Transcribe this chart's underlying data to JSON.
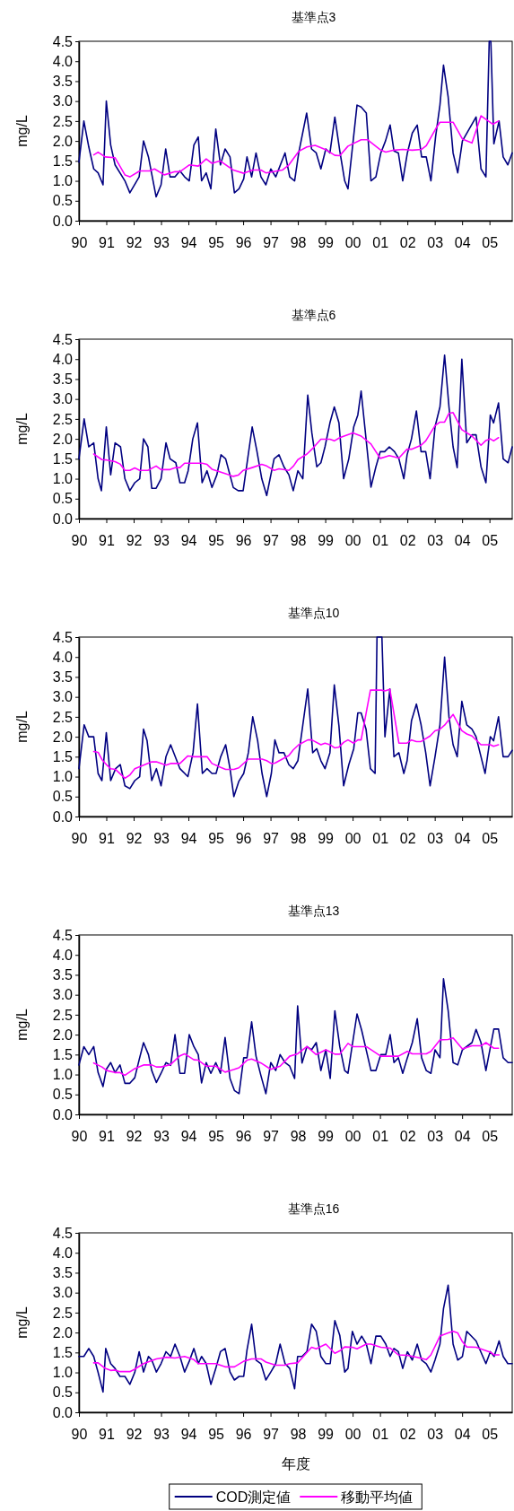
{
  "chart_data": [
    {
      "type": "line",
      "title": "基準点3",
      "ylabel": "mg/L",
      "xlim": [
        1990,
        2005.83
      ],
      "ylim": [
        0,
        4.5
      ],
      "xticks": [
        {
          "value": 1990,
          "label": "90"
        },
        {
          "value": 1991,
          "label": "91"
        },
        {
          "value": 1992,
          "label": "92"
        },
        {
          "value": 1993,
          "label": "93"
        },
        {
          "value": 1994,
          "label": "94"
        },
        {
          "value": 1995,
          "label": "95"
        },
        {
          "value": 1996,
          "label": "96"
        },
        {
          "value": 1997,
          "label": "97"
        },
        {
          "value": 1998,
          "label": "98"
        },
        {
          "value": 1999,
          "label": "99"
        },
        {
          "value": 2000,
          "label": "00"
        },
        {
          "value": 2001,
          "label": "01"
        },
        {
          "value": 2002,
          "label": "02"
        },
        {
          "value": 2003,
          "label": "03"
        },
        {
          "value": 2004,
          "label": "04"
        },
        {
          "value": 2005,
          "label": "05"
        }
      ],
      "yticks": [
        {
          "value": 0,
          "label": "0.0"
        },
        0.5,
        {
          "value": 1,
          "label": "1.0"
        },
        1.5,
        {
          "value": 2,
          "label": "2.0"
        },
        2.5,
        {
          "value": 3,
          "label": "3.0"
        },
        3.5,
        {
          "value": 4,
          "label": "4.0"
        },
        4.5
      ],
      "series": [
        {
          "color": "#000080",
          "x": [
            1990,
            1990.18,
            1990.36,
            1990.54,
            1990.7,
            1990.88,
            1991,
            1991.16,
            1991.32,
            1991.68,
            1991.86,
            1992.2,
            1992.36,
            1992.54,
            1992.82,
            1993,
            1993.17,
            1993.33,
            1993.51,
            1993.69,
            1993.86,
            1994.03,
            1994.2,
            1994.36,
            1994.48,
            1994.65,
            1994.82,
            1995,
            1995.17,
            1995.34,
            1995.52,
            1995.68,
            1995.85,
            1996.02,
            1996.14,
            1996.31,
            1996.47,
            1996.65,
            1996.83,
            1997.01,
            1997.19,
            1997.53,
            1997.7,
            1997.88,
            1998.03,
            1998.32,
            1998.5,
            1998.67,
            1998.84,
            1999.02,
            1999.17,
            1999.35,
            1999.53,
            1999.71,
            1999.83,
            2000.16,
            2000.31,
            2000.5,
            2000.67,
            2000.85,
            2001.03,
            2001.2,
            2001.37,
            2001.51,
            2001.67,
            2001.83,
            2002,
            2002.18,
            2002.36,
            2002.52,
            2002.69,
            2002.86,
            2003.03,
            2003.19,
            2003.32,
            2003.49,
            2003.67,
            2003.84,
            2004.01,
            2004.51,
            2004.69,
            2004.87,
            2004.99,
            2005.05,
            2005.16,
            2005.35,
            2005.5,
            2005.67,
            2005.83
          ],
          "values": [
            1.47,
            2.5,
            1.85,
            1.3,
            1.2,
            0.9,
            3.0,
            1.9,
            1.4,
            1.0,
            0.7,
            1.1,
            2.0,
            1.6,
            0.6,
            0.9,
            1.8,
            1.1,
            1.1,
            1.25,
            1.1,
            1.0,
            1.9,
            2.1,
            1.0,
            1.2,
            0.8,
            2.3,
            1.4,
            1.8,
            1.6,
            0.7,
            0.8,
            1.05,
            1.6,
            1.1,
            1.7,
            1.1,
            0.9,
            1.3,
            1.1,
            1.7,
            1.1,
            1.0,
            1.7,
            2.7,
            1.8,
            1.7,
            1.3,
            1.8,
            1.7,
            2.6,
            1.75,
            1.0,
            0.8,
            2.9,
            2.85,
            2.7,
            1.0,
            1.1,
            1.7,
            2.0,
            2.4,
            1.75,
            1.7,
            1.0,
            1.7,
            2.2,
            2.4,
            1.6,
            1.6,
            1.0,
            2.1,
            2.9,
            3.9,
            3.1,
            1.7,
            1.2,
            2.0,
            2.6,
            1.3,
            1.1,
            4.5,
            4.5,
            1.93,
            2.5,
            1.6,
            1.4,
            1.7
          ]
        },
        {
          "color": "#ff00ff",
          "x": [
            1990.54,
            1990.7,
            1990.96,
            1991.32,
            1991.68,
            1991.86,
            1992.22,
            1992.58,
            1992.76,
            1993.12,
            1993.51,
            1993.69,
            1994.03,
            1994.36,
            1994.65,
            1994.86,
            1995.16,
            1995.64,
            1996.02,
            1996.35,
            1996.65,
            1996.83,
            1997.43,
            1997.67,
            1998.03,
            1998.33,
            1998.63,
            1999.05,
            1999.35,
            1999.53,
            1999.83,
            2000.31,
            2000.55,
            2001.03,
            2001.21,
            2001.51,
            2001.83,
            2002.18,
            2002.52,
            2002.69,
            2003.03,
            2003.19,
            2003.67,
            2004.01,
            2004.36,
            2004.69,
            2005.12,
            2005.33
          ],
          "values": [
            1.65,
            1.72,
            1.6,
            1.58,
            1.15,
            1.1,
            1.25,
            1.25,
            1.3,
            1.15,
            1.23,
            1.23,
            1.4,
            1.37,
            1.55,
            1.44,
            1.5,
            1.27,
            1.19,
            1.27,
            1.27,
            1.2,
            1.27,
            1.4,
            1.74,
            1.85,
            1.89,
            1.77,
            1.64,
            1.63,
            1.87,
            2.03,
            2.03,
            1.77,
            1.72,
            1.77,
            1.79,
            1.77,
            1.79,
            1.88,
            2.3,
            2.47,
            2.47,
            2.05,
            1.95,
            2.63,
            2.42,
            2.5
          ]
        }
      ]
    },
    {
      "type": "line",
      "title": "基準点6",
      "ylabel": "mg/L",
      "xlim": [
        1990,
        2005.83
      ],
      "ylim": [
        0,
        4.5
      ],
      "xticks": [
        {
          "value": 1990,
          "label": "90"
        },
        {
          "value": 1991,
          "label": "91"
        },
        {
          "value": 1992,
          "label": "92"
        },
        {
          "value": 1993,
          "label": "93"
        },
        {
          "value": 1994,
          "label": "94"
        },
        {
          "value": 1995,
          "label": "95"
        },
        {
          "value": 1996,
          "label": "96"
        },
        {
          "value": 1997,
          "label": "97"
        },
        {
          "value": 1998,
          "label": "98"
        },
        {
          "value": 1999,
          "label": "99"
        },
        {
          "value": 2000,
          "label": "00"
        },
        {
          "value": 2001,
          "label": "01"
        },
        {
          "value": 2002,
          "label": "02"
        },
        {
          "value": 2003,
          "label": "03"
        },
        {
          "value": 2004,
          "label": "04"
        },
        {
          "value": 2005,
          "label": "05"
        }
      ],
      "yticks": [
        {
          "value": 0,
          "label": "0.0"
        },
        0.5,
        {
          "value": 1,
          "label": "1.0"
        },
        1.5,
        {
          "value": 2,
          "label": "2.0"
        },
        2.5,
        {
          "value": 3,
          "label": "3.0"
        },
        3.5,
        {
          "value": 4,
          "label": "4.0"
        },
        4.5
      ],
      "series": [
        {
          "color": "#000080",
          "x": [
            1990,
            1990.19,
            1990.36,
            1990.54,
            1990.7,
            1990.82,
            1991,
            1991.16,
            1991.32,
            1991.52,
            1991.68,
            1991.86,
            1992.04,
            1992.22,
            1992.36,
            1992.52,
            1992.66,
            1992.82,
            1993,
            1993.18,
            1993.33,
            1993.54,
            1993.69,
            1993.86,
            1993.99,
            1994.16,
            1994.33,
            1994.5,
            1994.68,
            1994.86,
            1995.04,
            1995.19,
            1995.36,
            1995.64,
            1995.82,
            1996,
            1996.33,
            1996.5,
            1996.68,
            1996.86,
            1997.13,
            1997.31,
            1997.49,
            1997.67,
            1997.83,
            1998,
            1998.18,
            1998.36,
            1998.51,
            1998.69,
            1998.84,
            1998.99,
            1999.17,
            1999.33,
            1999.5,
            1999.67,
            1999.86,
            2000.04,
            2000.19,
            2000.31,
            2000.49,
            2000.67,
            2000.85,
            2001.01,
            2001.17,
            2001.34,
            2001.53,
            2001.69,
            2001.87,
            2001.99,
            2002.15,
            2002.33,
            2002.5,
            2002.67,
            2002.83,
            2003.01,
            2003.19,
            2003.36,
            2003.52,
            2003.67,
            2003.82,
            2003.99,
            2004.17,
            2004.36,
            2004.51,
            2004.69,
            2004.87,
            2005.03,
            2005.15,
            2005.33,
            2005.5,
            2005.68,
            2005.83
          ],
          "values": [
            1.5,
            2.5,
            1.8,
            1.9,
            1.0,
            0.7,
            2.3,
            1.1,
            1.9,
            1.8,
            1.0,
            0.7,
            0.9,
            1.0,
            2.0,
            1.8,
            0.76,
            0.76,
            1.0,
            1.9,
            1.5,
            1.4,
            0.9,
            0.9,
            1.2,
            2.0,
            2.4,
            0.9,
            1.2,
            0.78,
            1.1,
            1.6,
            1.5,
            0.78,
            0.7,
            0.7,
            2.3,
            1.7,
            1.0,
            0.58,
            1.5,
            1.6,
            1.3,
            1.1,
            0.7,
            1.2,
            1.0,
            3.1,
            2.15,
            1.3,
            1.4,
            1.8,
            2.4,
            2.8,
            2.4,
            1.0,
            1.5,
            2.3,
            2.6,
            3.2,
            2.0,
            0.79,
            1.3,
            1.68,
            1.68,
            1.8,
            1.68,
            1.5,
            1.0,
            1.6,
            2.0,
            2.7,
            1.68,
            1.68,
            1.0,
            2.3,
            2.8,
            4.1,
            2.8,
            1.8,
            1.28,
            4.0,
            1.9,
            2.1,
            2.1,
            1.3,
            0.9,
            2.6,
            2.4,
            2.9,
            1.5,
            1.4,
            1.8
          ]
        },
        {
          "color": "#ff00ff",
          "x": [
            1990.54,
            1990.84,
            1991.02,
            1991.32,
            1991.5,
            1991.68,
            1991.86,
            1992.04,
            1992.22,
            1992.52,
            1992.82,
            1993,
            1993.33,
            1993.54,
            1993.69,
            1993.86,
            1994.5,
            1994.68,
            1994.86,
            1995.34,
            1995.64,
            1995.82,
            1996,
            1996.33,
            1996.68,
            1996.86,
            1997.13,
            1997.31,
            1997.67,
            1997.84,
            1998,
            1998.33,
            1998.51,
            1998.84,
            1999.17,
            1999.33,
            1999.53,
            2000.01,
            2000.31,
            2000.67,
            2001.01,
            2001.34,
            2001.69,
            2001.99,
            2002.15,
            2002.5,
            2002.67,
            2003.01,
            2003.19,
            2003.36,
            2003.52,
            2003.67,
            2003.99,
            2004.36,
            2004.69,
            2004.87,
            2005.03,
            2005.15,
            2005.33
          ],
          "values": [
            1.62,
            1.48,
            1.47,
            1.43,
            1.37,
            1.21,
            1.21,
            1.27,
            1.21,
            1.21,
            1.32,
            1.23,
            1.23,
            1.28,
            1.28,
            1.39,
            1.39,
            1.36,
            1.24,
            1.13,
            1.06,
            1.09,
            1.21,
            1.28,
            1.36,
            1.32,
            1.21,
            1.25,
            1.21,
            1.32,
            1.48,
            1.62,
            1.74,
            1.99,
            1.99,
            1.95,
            2.03,
            2.15,
            2.07,
            1.87,
            1.51,
            1.58,
            1.52,
            1.74,
            1.74,
            1.84,
            1.95,
            2.33,
            2.42,
            2.42,
            2.64,
            2.66,
            2.23,
            2.07,
            1.84,
            1.96,
            2.0,
            1.95,
            2.03
          ]
        }
      ]
    },
    {
      "type": "line",
      "title": "基準点10",
      "ylabel": "mg/L",
      "xlim": [
        1990,
        2005.83
      ],
      "ylim": [
        0,
        4.5
      ],
      "xticks": [
        {
          "value": 1990,
          "label": "90"
        },
        {
          "value": 1991,
          "label": "91"
        },
        {
          "value": 1992,
          "label": "92"
        },
        {
          "value": 1993,
          "label": "93"
        },
        {
          "value": 1994,
          "label": "94"
        },
        {
          "value": 1995,
          "label": "95"
        },
        {
          "value": 1996,
          "label": "96"
        },
        {
          "value": 1997,
          "label": "97"
        },
        {
          "value": 1998,
          "label": "98"
        },
        {
          "value": 1999,
          "label": "99"
        },
        {
          "value": 2000,
          "label": "00"
        },
        {
          "value": 2001,
          "label": "01"
        },
        {
          "value": 2002,
          "label": "02"
        },
        {
          "value": 2003,
          "label": "03"
        },
        {
          "value": 2004,
          "label": "04"
        },
        {
          "value": 2005,
          "label": "05"
        }
      ],
      "yticks": [
        {
          "value": 0,
          "label": "0.0"
        },
        0.5,
        {
          "value": 1,
          "label": "1.0"
        },
        1.5,
        {
          "value": 2,
          "label": "2.0"
        },
        2.5,
        {
          "value": 3,
          "label": "3.0"
        },
        3.5,
        {
          "value": 4,
          "label": "4.0"
        },
        4.5
      ],
      "series": [
        {
          "color": "#000080",
          "x": [
            1990,
            1990.19,
            1990.36,
            1990.54,
            1990.7,
            1990.84,
            1991,
            1991.16,
            1991.34,
            1991.51,
            1991.68,
            1991.86,
            1992.04,
            1992.22,
            1992.36,
            1992.49,
            1992.66,
            1992.83,
            1993,
            1993.18,
            1993.35,
            1993.69,
            1993.98,
            1994.17,
            1994.33,
            1994.51,
            1994.68,
            1994.86,
            1995.01,
            1995.18,
            1995.36,
            1995.52,
            1995.66,
            1995.84,
            1996.02,
            1996.19,
            1996.35,
            1996.53,
            1996.69,
            1996.86,
            1997.03,
            1997.16,
            1997.31,
            1997.49,
            1997.67,
            1997.83,
            1998,
            1998.18,
            1998.36,
            1998.54,
            1998.69,
            1998.84,
            1998.99,
            1999.17,
            1999.33,
            1999.5,
            1999.67,
            1999.86,
            2000.04,
            2000.19,
            2000.31,
            2000.49,
            2000.65,
            2000.82,
            2000.89,
            2001.07,
            2001.18,
            2001.36,
            2001.51,
            2001.69,
            2001.87,
            2001.99,
            2002.15,
            2002.33,
            2002.5,
            2002.67,
            2002.83,
            2003.01,
            2003.19,
            2003.36,
            2003.52,
            2003.67,
            2003.82,
            2003.99,
            2004.17,
            2004.36,
            2004.51,
            2004.69,
            2004.84,
            2005.03,
            2005.15,
            2005.33,
            2005.5,
            2005.68,
            2005.83
          ],
          "values": [
            1.2,
            2.3,
            2.0,
            2.0,
            1.08,
            0.9,
            2.1,
            0.9,
            1.2,
            1.3,
            0.77,
            0.7,
            0.9,
            1.0,
            2.19,
            1.9,
            0.9,
            1.2,
            0.77,
            1.5,
            1.8,
            1.2,
            1.0,
            1.6,
            2.82,
            1.08,
            1.2,
            1.08,
            1.08,
            1.5,
            1.8,
            1.2,
            0.5,
            0.88,
            1.08,
            1.6,
            2.5,
            1.9,
            1.08,
            0.5,
            1.08,
            1.92,
            1.6,
            1.6,
            1.3,
            1.2,
            1.4,
            2.3,
            3.2,
            1.6,
            1.7,
            1.4,
            1.2,
            1.6,
            3.3,
            2.27,
            0.77,
            1.3,
            1.7,
            2.6,
            2.6,
            2.19,
            1.2,
            1.08,
            4.5,
            4.5,
            2.0,
            3.2,
            1.5,
            1.6,
            1.08,
            1.4,
            2.4,
            2.82,
            2.3,
            1.6,
            0.77,
            1.5,
            2.3,
            4.0,
            2.5,
            1.8,
            1.5,
            2.89,
            2.3,
            2.19,
            2.0,
            1.5,
            1.08,
            2.0,
            1.9,
            2.5,
            1.5,
            1.5,
            1.66
          ]
        },
        {
          "color": "#ff00ff",
          "x": [
            1990.54,
            1990.7,
            1990.84,
            1991.02,
            1991.16,
            1991.34,
            1991.68,
            1991.86,
            1992.04,
            1992.36,
            1992.66,
            1992.83,
            1993.18,
            1993.35,
            1993.69,
            1993.98,
            1994.17,
            1994.68,
            1994.86,
            1995.18,
            1995.36,
            1995.66,
            1995.84,
            1996.19,
            1996.69,
            1996.86,
            1997.03,
            1997.16,
            1997.67,
            1997.83,
            1998.03,
            1998.36,
            1998.51,
            1998.84,
            1998.99,
            1999.17,
            1999.35,
            1999.5,
            1999.67,
            1999.83,
            2000.04,
            2000.19,
            2000.31,
            2000.65,
            2001.04,
            2001.18,
            2001.36,
            2001.69,
            2001.99,
            2002.15,
            2002.33,
            2002.5,
            2002.83,
            2003.01,
            2003.19,
            2003.36,
            2003.67,
            2003.99,
            2004.17,
            2004.36,
            2004.69,
            2005.03,
            2005.15,
            2005.33
          ],
          "values": [
            1.63,
            1.61,
            1.43,
            1.29,
            1.2,
            1.18,
            0.96,
            1.04,
            1.2,
            1.29,
            1.37,
            1.37,
            1.29,
            1.33,
            1.33,
            1.52,
            1.5,
            1.5,
            1.33,
            1.23,
            1.18,
            1.18,
            1.22,
            1.44,
            1.44,
            1.4,
            1.33,
            1.34,
            1.53,
            1.67,
            1.8,
            1.92,
            1.92,
            1.8,
            1.84,
            1.8,
            1.72,
            1.74,
            1.86,
            1.92,
            1.84,
            1.92,
            1.92,
            3.17,
            3.17,
            3.15,
            3.19,
            1.84,
            1.84,
            1.92,
            1.88,
            1.88,
            2.02,
            2.15,
            2.19,
            2.29,
            2.56,
            2.15,
            2.07,
            2.02,
            1.8,
            1.8,
            1.76,
            1.8
          ]
        }
      ]
    },
    {
      "type": "line",
      "title": "基準点13",
      "ylabel": "mg/L",
      "xlim": [
        1990,
        2005.83
      ],
      "ylim": [
        0,
        4.5
      ],
      "xticks": [
        {
          "value": 1990,
          "label": "90"
        },
        {
          "value": 1991,
          "label": "91"
        },
        {
          "value": 1992,
          "label": "92"
        },
        {
          "value": 1993,
          "label": "93"
        },
        {
          "value": 1994,
          "label": "94"
        },
        {
          "value": 1995,
          "label": "95"
        },
        {
          "value": 1996,
          "label": "96"
        },
        {
          "value": 1997,
          "label": "97"
        },
        {
          "value": 1998,
          "label": "98"
        },
        {
          "value": 1999,
          "label": "99"
        },
        {
          "value": 2000,
          "label": "00"
        },
        {
          "value": 2001,
          "label": "01"
        },
        {
          "value": 2002,
          "label": "02"
        },
        {
          "value": 2003,
          "label": "03"
        },
        {
          "value": 2004,
          "label": "04"
        },
        {
          "value": 2005,
          "label": "05"
        }
      ],
      "yticks": [
        {
          "value": 0,
          "label": "0.0"
        },
        0.5,
        {
          "value": 1,
          "label": "1.0"
        },
        1.5,
        {
          "value": 2,
          "label": "2.0"
        },
        2.5,
        {
          "value": 3,
          "label": "3.0"
        },
        3.5,
        {
          "value": 4,
          "label": "4.0"
        },
        4.5
      ],
      "series": [
        {
          "color": "#000080",
          "x": [
            1990,
            1990.18,
            1990.36,
            1990.54,
            1990.7,
            1990.88,
            1991,
            1991.16,
            1991.32,
            1991.5,
            1991.68,
            1991.86,
            1992.04,
            1992.2,
            1992.36,
            1992.54,
            1992.66,
            1992.83,
            1993,
            1993.18,
            1993.35,
            1993.51,
            1993.69,
            1993.86,
            1994.03,
            1994.2,
            1994.36,
            1994.48,
            1994.65,
            1994.82,
            1995,
            1995.17,
            1995.34,
            1995.52,
            1995.68,
            1995.85,
            1996.02,
            1996.14,
            1996.31,
            1996.47,
            1996.65,
            1996.83,
            1997.01,
            1997.19,
            1997.35,
            1997.53,
            1997.7,
            1997.88,
            1997.99,
            1998.15,
            1998.33,
            1998.5,
            1998.67,
            1998.84,
            1999.02,
            1999.18,
            1999.35,
            1999.53,
            1999.71,
            1999.83,
            2000.16,
            2000.33,
            2000.67,
            2000.85,
            2001.03,
            2001.21,
            2001.37,
            2001.51,
            2001.67,
            2001.83,
            2002,
            2002.18,
            2002.36,
            2002.52,
            2002.69,
            2002.86,
            2003.01,
            2003.19,
            2003.32,
            2003.49,
            2003.67,
            2003.84,
            2004.01,
            2004.36,
            2004.51,
            2004.69,
            2004.87,
            2005.16,
            2005.33,
            2005.5,
            2005.68,
            2005.83
          ],
          "values": [
            1.24,
            1.7,
            1.5,
            1.7,
            1.05,
            0.7,
            1.13,
            1.3,
            1.05,
            1.24,
            0.78,
            0.78,
            0.92,
            1.37,
            1.8,
            1.5,
            1.1,
            0.8,
            1.03,
            1.3,
            1.23,
            2.0,
            1.03,
            1.03,
            2.0,
            1.7,
            1.5,
            0.79,
            1.3,
            1.03,
            1.3,
            1.03,
            1.93,
            0.9,
            0.6,
            0.52,
            1.42,
            1.42,
            2.32,
            1.46,
            0.97,
            0.52,
            1.3,
            1.1,
            1.5,
            1.3,
            1.21,
            0.9,
            2.72,
            1.29,
            1.7,
            1.62,
            1.8,
            1.1,
            1.62,
            0.9,
            2.6,
            1.7,
            1.1,
            1.03,
            2.52,
            2.11,
            1.1,
            1.1,
            1.5,
            1.5,
            2.0,
            1.3,
            1.42,
            1.03,
            1.42,
            1.8,
            2.4,
            1.42,
            1.1,
            1.03,
            1.62,
            1.42,
            3.4,
            2.6,
            1.3,
            1.24,
            1.62,
            1.8,
            2.13,
            1.8,
            1.1,
            2.14,
            2.14,
            1.42,
            1.3,
            1.3
          ]
        },
        {
          "color": "#ff00ff",
          "x": [
            1990.54,
            1990.84,
            1991.02,
            1991.32,
            1991.5,
            1991.68,
            1992.04,
            1992.36,
            1992.66,
            1992.83,
            1993,
            1993.35,
            1993.69,
            1993.86,
            1994.2,
            1994.36,
            1994.65,
            1995,
            1995.34,
            1995.68,
            1995.85,
            1996.14,
            1996.31,
            1996.65,
            1997.01,
            1997.35,
            1997.7,
            1997.99,
            1998.33,
            1998.67,
            1999.02,
            1999.35,
            1999.53,
            1999.83,
            2000.01,
            2000.5,
            2001.03,
            2001.67,
            2002,
            2002.18,
            2002.69,
            2002.86,
            2003.19,
            2003.49,
            2003.67,
            2004.01,
            2004.36,
            2004.69,
            2004.87,
            2005.16,
            2005.33
          ],
          "values": [
            1.29,
            1.19,
            1.1,
            1.05,
            1.05,
            0.98,
            1.15,
            1.24,
            1.24,
            1.19,
            1.19,
            1.25,
            1.47,
            1.52,
            1.37,
            1.36,
            1.21,
            1.21,
            1.06,
            1.13,
            1.17,
            1.36,
            1.39,
            1.29,
            1.13,
            1.21,
            1.46,
            1.52,
            1.7,
            1.5,
            1.62,
            1.51,
            1.51,
            1.78,
            1.7,
            1.7,
            1.46,
            1.46,
            1.58,
            1.52,
            1.52,
            1.58,
            1.87,
            1.88,
            1.92,
            1.64,
            1.72,
            1.72,
            1.8,
            1.66,
            1.66
          ]
        }
      ]
    },
    {
      "type": "line",
      "title": "基準点16",
      "ylabel": "mg/L",
      "xlabel": "年度",
      "legend": "bottom",
      "xlim": [
        1990,
        2005.83
      ],
      "ylim": [
        0,
        4.5
      ],
      "xticks": [
        {
          "value": 1990,
          "label": "90"
        },
        {
          "value": 1991,
          "label": "91"
        },
        {
          "value": 1992,
          "label": "92"
        },
        {
          "value": 1993,
          "label": "93"
        },
        {
          "value": 1994,
          "label": "94"
        },
        {
          "value": 1995,
          "label": "95"
        },
        {
          "value": 1996,
          "label": "96"
        },
        {
          "value": 1997,
          "label": "97"
        },
        {
          "value": 1998,
          "label": "98"
        },
        {
          "value": 1999,
          "label": "99"
        },
        {
          "value": 2000,
          "label": "00"
        },
        {
          "value": 2001,
          "label": "01"
        },
        {
          "value": 2002,
          "label": "02"
        },
        {
          "value": 2003,
          "label": "03"
        },
        {
          "value": 2004,
          "label": "04"
        },
        {
          "value": 2005,
          "label": "05"
        }
      ],
      "yticks": [
        {
          "value": 0,
          "label": "0.0"
        },
        0.5,
        {
          "value": 1,
          "label": "1.0"
        },
        1.5,
        {
          "value": 2,
          "label": "2.0"
        },
        2.5,
        {
          "value": 3,
          "label": "3.0"
        },
        3.5,
        {
          "value": 4,
          "label": "4.0"
        },
        4.5
      ],
      "series": [
        {
          "name": "COD測定値",
          "color": "#000080",
          "x": [
            1990,
            1990.18,
            1990.36,
            1990.54,
            1990.7,
            1990.88,
            1990.98,
            1991.16,
            1991.32,
            1991.5,
            1991.68,
            1991.86,
            1992.04,
            1992.2,
            1992.36,
            1992.54,
            1992.66,
            1992.83,
            1993,
            1993.18,
            1993.35,
            1993.51,
            1993.69,
            1993.86,
            1994.03,
            1994.2,
            1994.36,
            1994.48,
            1994.65,
            1994.82,
            1995,
            1995.17,
            1995.34,
            1995.52,
            1995.68,
            1995.85,
            1996.02,
            1996.14,
            1996.31,
            1996.47,
            1996.65,
            1996.83,
            1997.01,
            1997.19,
            1997.35,
            1997.53,
            1997.7,
            1997.88,
            1997.99,
            1998.15,
            1998.33,
            1998.5,
            1998.67,
            1998.84,
            1999.02,
            1999.18,
            1999.35,
            1999.53,
            1999.71,
            1999.83,
            1999.99,
            2000.16,
            2000.33,
            2000.5,
            2000.67,
            2000.85,
            2001.03,
            2001.21,
            2001.37,
            2001.51,
            2001.67,
            2001.83,
            2002,
            2002.18,
            2002.36,
            2002.52,
            2002.69,
            2002.86,
            2003.01,
            2003.19,
            2003.32,
            2003.49,
            2003.67,
            2003.84,
            2004.01,
            2004.17,
            2004.51,
            2004.87,
            2005.03,
            2005.17,
            2005.35,
            2005.5,
            2005.67,
            2005.83
          ],
          "values": [
            1.4,
            1.4,
            1.6,
            1.4,
            1.0,
            0.51,
            1.6,
            1.22,
            1.1,
            0.9,
            0.9,
            0.7,
            1.0,
            1.52,
            1.01,
            1.4,
            1.31,
            1.01,
            1.22,
            1.52,
            1.4,
            1.71,
            1.4,
            1.01,
            1.28,
            1.6,
            1.22,
            1.4,
            1.22,
            0.7,
            1.1,
            1.52,
            1.6,
            1.01,
            0.81,
            0.9,
            0.9,
            1.56,
            2.21,
            1.31,
            1.22,
            0.81,
            1.01,
            1.22,
            1.71,
            1.22,
            1.1,
            0.59,
            1.4,
            1.4,
            1.52,
            2.21,
            2.03,
            1.4,
            1.22,
            1.22,
            2.3,
            1.93,
            1.01,
            1.1,
            2.03,
            1.71,
            1.91,
            1.71,
            1.22,
            1.91,
            1.91,
            1.71,
            1.4,
            1.6,
            1.52,
            1.1,
            1.52,
            1.31,
            1.71,
            1.31,
            1.22,
            1.01,
            1.31,
            1.71,
            2.6,
            3.19,
            1.71,
            1.31,
            1.4,
            2.03,
            1.79,
            1.22,
            1.52,
            1.4,
            1.79,
            1.4,
            1.22,
            1.22
          ]
        },
        {
          "name": "移動平均値",
          "color": "#ff00ff",
          "x": [
            1990.54,
            1990.7,
            1990.96,
            1991.16,
            1991.32,
            1991.5,
            1991.86,
            1992.04,
            1992.36,
            1992.83,
            1993.18,
            1993.51,
            1993.86,
            1994.2,
            1994.36,
            1995,
            1995.34,
            1995.68,
            1996.02,
            1996.31,
            1996.65,
            1996.83,
            1997.19,
            1997.53,
            1997.7,
            1997.99,
            1998.15,
            1998.5,
            1998.67,
            1999.02,
            1999.35,
            1999.53,
            1999.71,
            1999.99,
            2000.16,
            2000.5,
            2000.67,
            2001.03,
            2001.37,
            2001.67,
            2002,
            2002.36,
            2002.69,
            2002.86,
            2003.19,
            2003.49,
            2003.67,
            2003.84,
            2004.01,
            2004.17,
            2004.51,
            2005.03,
            2005.17,
            2005.35
          ],
          "values": [
            1.24,
            1.24,
            1.1,
            1.05,
            1.06,
            1.02,
            1.02,
            1.08,
            1.22,
            1.34,
            1.38,
            1.36,
            1.4,
            1.32,
            1.22,
            1.22,
            1.14,
            1.14,
            1.28,
            1.34,
            1.34,
            1.26,
            1.18,
            1.18,
            1.22,
            1.24,
            1.36,
            1.63,
            1.59,
            1.71,
            1.48,
            1.54,
            1.64,
            1.63,
            1.59,
            1.71,
            1.71,
            1.63,
            1.61,
            1.44,
            1.43,
            1.38,
            1.32,
            1.44,
            1.91,
            1.99,
            2.03,
            1.99,
            1.77,
            1.64,
            1.63,
            1.51,
            1.44,
            1.44
          ]
        }
      ]
    }
  ]
}
